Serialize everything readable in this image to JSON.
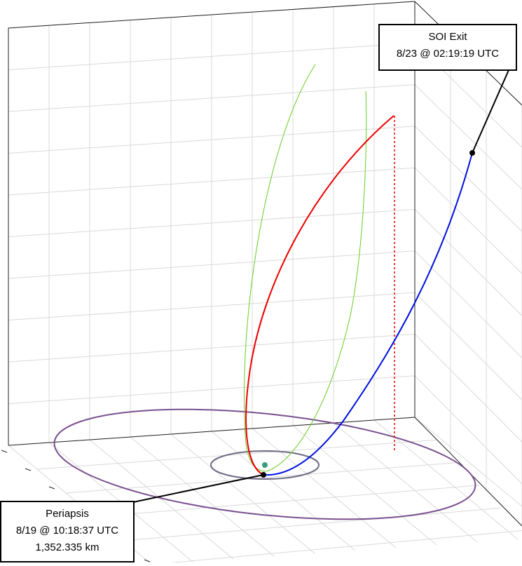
{
  "annotations": {
    "soi_exit": {
      "lines": [
        "SOI Exit",
        "8/23 @ 02:19:19 UTC"
      ]
    },
    "periapsis": {
      "lines": [
        "Periapsis",
        "8/19 @ 10:18:37 UTC",
        "1,352.335 km"
      ]
    }
  }
}
